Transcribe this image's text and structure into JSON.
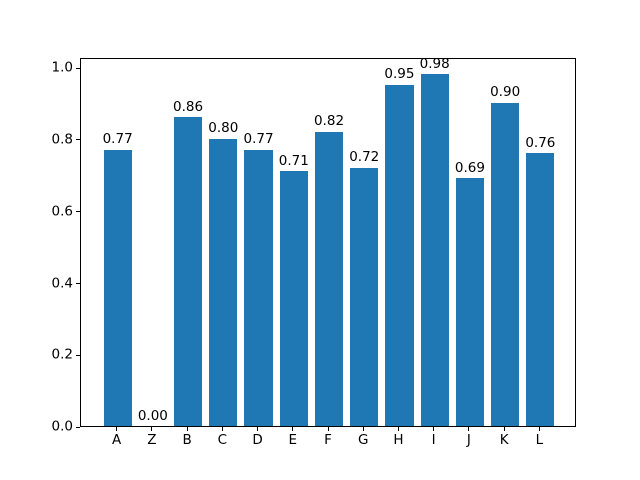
{
  "figure": {
    "background": "#ffffff"
  },
  "chart_data": {
    "type": "bar",
    "categories": [
      "A",
      "Z",
      "B",
      "C",
      "D",
      "E",
      "F",
      "G",
      "H",
      "I",
      "J",
      "K",
      "L"
    ],
    "values": [
      0.77,
      0.0,
      0.86,
      0.8,
      0.77,
      0.71,
      0.82,
      0.72,
      0.95,
      0.98,
      0.69,
      0.9,
      0.76
    ],
    "bar_value_labels": [
      "0.77",
      "0.00",
      "0.86",
      "0.80",
      "0.77",
      "0.71",
      "0.82",
      "0.72",
      "0.95",
      "0.98",
      "0.69",
      "0.90",
      "0.76"
    ],
    "title": "",
    "xlabel": "",
    "ylabel": "",
    "xlim": [
      -1.04,
      13.04
    ],
    "ylim": [
      0,
      1.029
    ],
    "yticks": [
      0.0,
      0.2,
      0.4,
      0.6,
      0.8,
      1.0
    ],
    "ytick_labels": [
      "0.0",
      "0.2",
      "0.4",
      "0.6",
      "0.8",
      "1.0"
    ],
    "bar_width_units": 0.8,
    "bar_color": "#1f77b4",
    "spine_color": "#000000",
    "text_color": "#000000",
    "grid": false,
    "legend": null
  }
}
